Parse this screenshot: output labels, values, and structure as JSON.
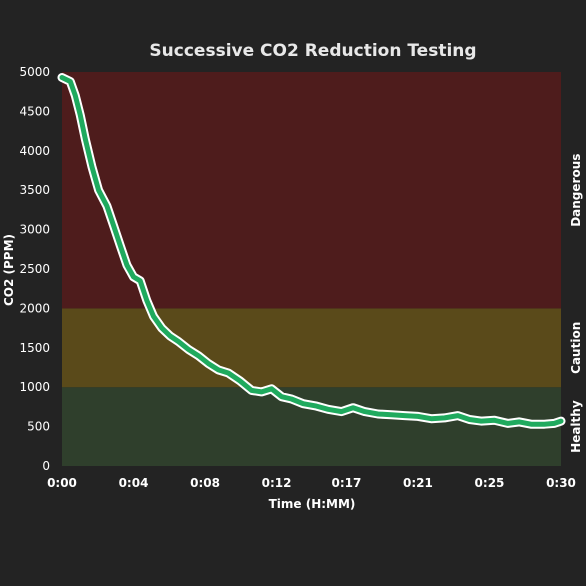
{
  "chart_data": {
    "type": "line",
    "title": "Successive CO2 Reduction Testing",
    "xlabel": "Time (H:MM)",
    "ylabel": "CO2 (PPM)",
    "xlim": [
      0,
      30
    ],
    "ylim": [
      0,
      5000
    ],
    "x_ticks": [
      {
        "value": 0,
        "label": "0:00"
      },
      {
        "value": 4.3,
        "label": "0:04"
      },
      {
        "value": 8.6,
        "label": "0:08"
      },
      {
        "value": 12.9,
        "label": "0:12"
      },
      {
        "value": 17.1,
        "label": "0:17"
      },
      {
        "value": 21.4,
        "label": "0:21"
      },
      {
        "value": 25.7,
        "label": "0:25"
      },
      {
        "value": 30,
        "label": "0:30"
      }
    ],
    "y_ticks": [
      0,
      500,
      1000,
      1500,
      2000,
      2500,
      3000,
      3500,
      4000,
      4500,
      5000
    ],
    "zones": [
      {
        "label": "Healthy",
        "from": 0,
        "to": 1000,
        "color": "#2f3f2c"
      },
      {
        "label": "Caution",
        "from": 1000,
        "to": 2000,
        "color": "#5a4a1a"
      },
      {
        "label": "Dangerous",
        "from": 2000,
        "to": 5000,
        "color": "#4e1c1c"
      }
    ],
    "series": [
      {
        "color": "#1faa5e",
        "outline": "#ffffff",
        "x": [
          0,
          0.5,
          0.8,
          1.1,
          1.4,
          1.8,
          2.2,
          2.7,
          3.1,
          3.5,
          3.9,
          4.3,
          4.7,
          5.1,
          5.5,
          6.0,
          6.5,
          7.0,
          7.6,
          8.2,
          8.8,
          9.4,
          10.0,
          10.7,
          11.4,
          12.0,
          12.6,
          13.2,
          13.8,
          14.5,
          15.3,
          16.0,
          16.8,
          17.5,
          18.2,
          19.0,
          19.8,
          20.6,
          21.4,
          22.2,
          23.0,
          23.8,
          24.5,
          25.2,
          26.0,
          26.8,
          27.5,
          28.2,
          29.0,
          29.6,
          30.0
        ],
        "y": [
          4930,
          4880,
          4700,
          4450,
          4150,
          3800,
          3500,
          3300,
          3050,
          2800,
          2550,
          2400,
          2350,
          2100,
          1900,
          1750,
          1650,
          1580,
          1480,
          1400,
          1300,
          1220,
          1180,
          1080,
          960,
          940,
          980,
          880,
          850,
          790,
          760,
          720,
          690,
          740,
          690,
          660,
          650,
          640,
          630,
          600,
          610,
          640,
          590,
          570,
          580,
          540,
          560,
          530,
          530,
          540,
          570
        ]
      }
    ],
    "grid": false,
    "legend": "none"
  }
}
